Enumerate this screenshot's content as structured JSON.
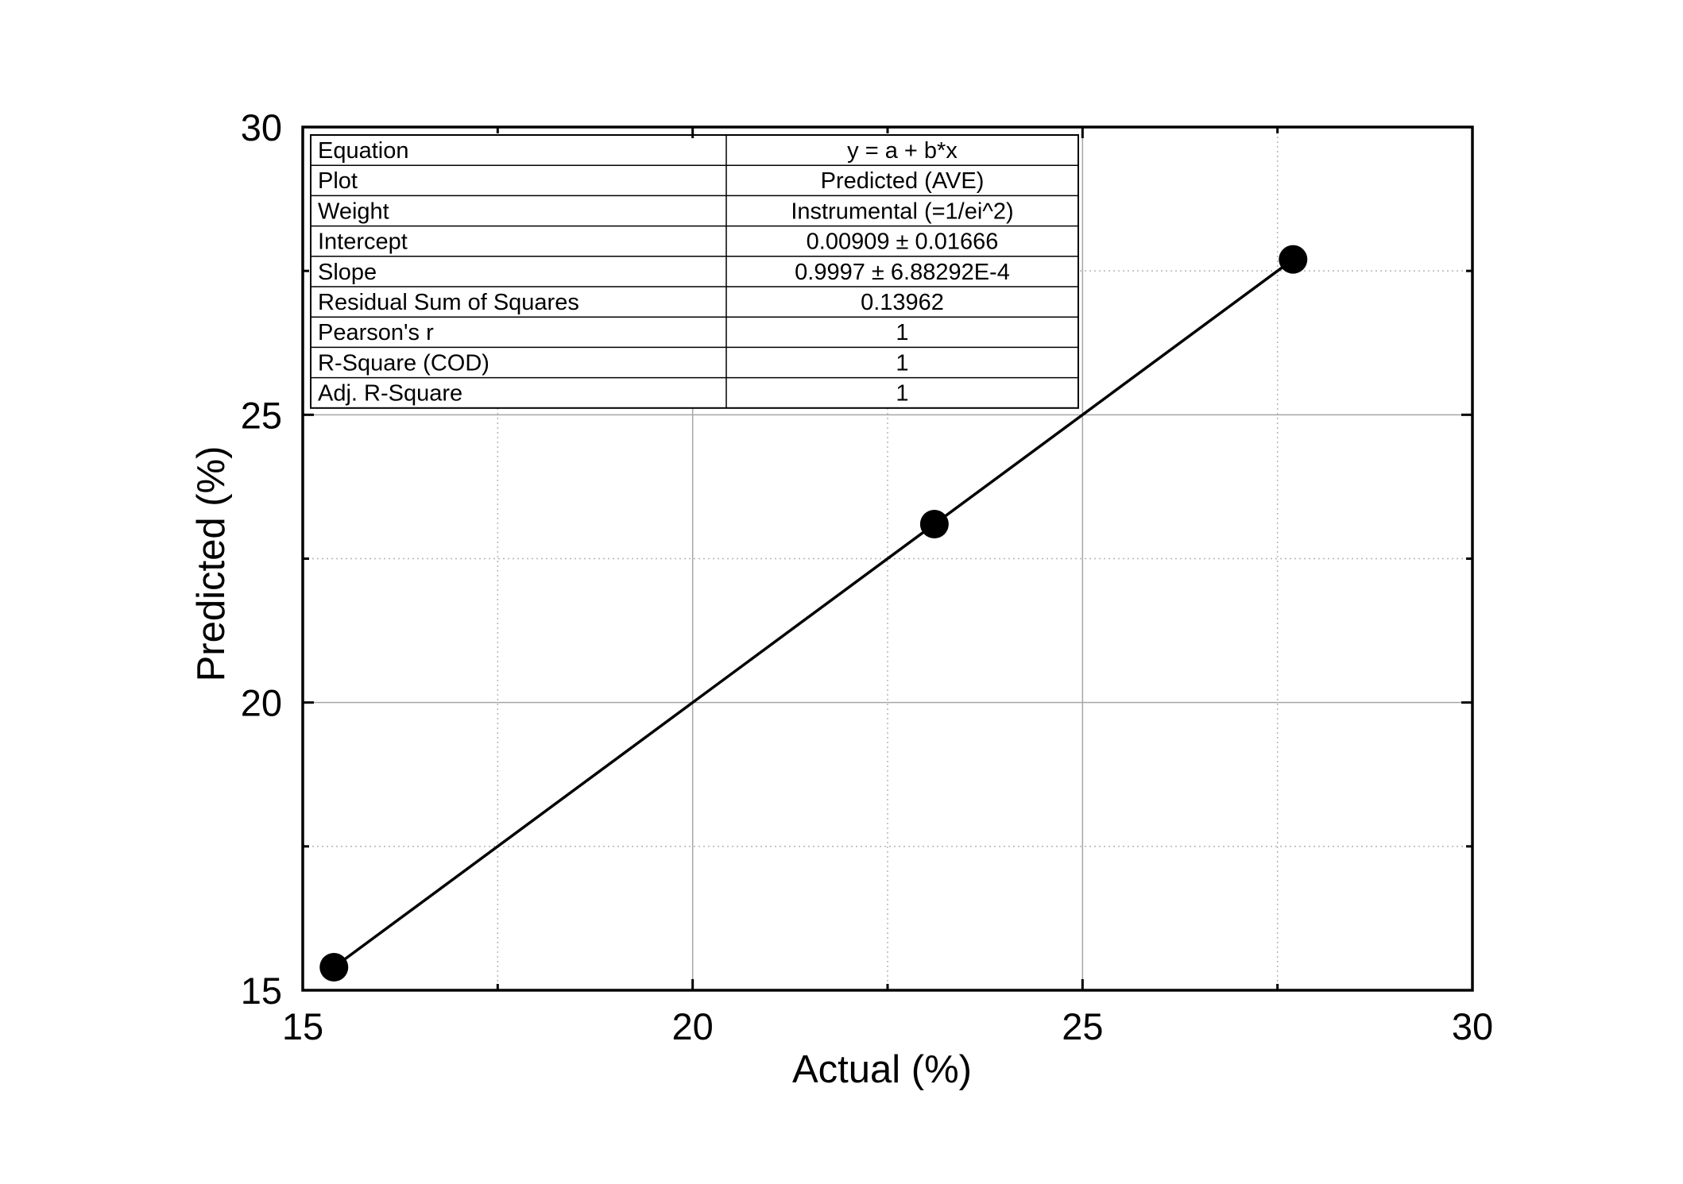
{
  "chart_data": {
    "type": "scatter",
    "xlabel": "Actual (%)",
    "ylabel": "Predicted (%)",
    "xlim": [
      15,
      30
    ],
    "ylim": [
      15,
      30
    ],
    "x_ticks": [
      "15",
      "20",
      "25",
      "30"
    ],
    "y_ticks": [
      "15",
      "20",
      "25",
      "30"
    ],
    "x_tick_values": [
      15,
      20,
      25,
      30
    ],
    "y_tick_values": [
      15,
      20,
      25,
      30
    ],
    "x_minor_values": [
      17.5,
      22.5,
      27.5
    ],
    "y_minor_values": [
      17.5,
      22.5,
      27.5
    ],
    "grid": true,
    "series": [
      {
        "points": [
          {
            "x": 15.4,
            "y": 15.4
          },
          {
            "x": 23.1,
            "y": 23.1
          },
          {
            "x": 27.7,
            "y": 27.7
          }
        ]
      }
    ],
    "fit_line": {
      "x": [
        15.4,
        27.7
      ],
      "y": [
        15.4,
        27.7
      ]
    },
    "stats_table": {
      "placement": "top-left",
      "rows": [
        {
          "label": "Equation",
          "value": "y = a + b*x"
        },
        {
          "label": "Plot",
          "value": "Predicted (AVE)"
        },
        {
          "label": "Weight",
          "value": "Instrumental (=1/ei^2)"
        },
        {
          "label": "Intercept",
          "value": "0.00909 ± 0.01666"
        },
        {
          "label": "Slope",
          "value": "0.9997 ± 6.88292E-4"
        },
        {
          "label": "Residual Sum of Squares",
          "value": "0.13962"
        },
        {
          "label": "Pearson's r",
          "value": "1"
        },
        {
          "label": "R-Square (COD)",
          "value": "1"
        },
        {
          "label": "Adj. R-Square",
          "value": "1"
        }
      ]
    }
  }
}
